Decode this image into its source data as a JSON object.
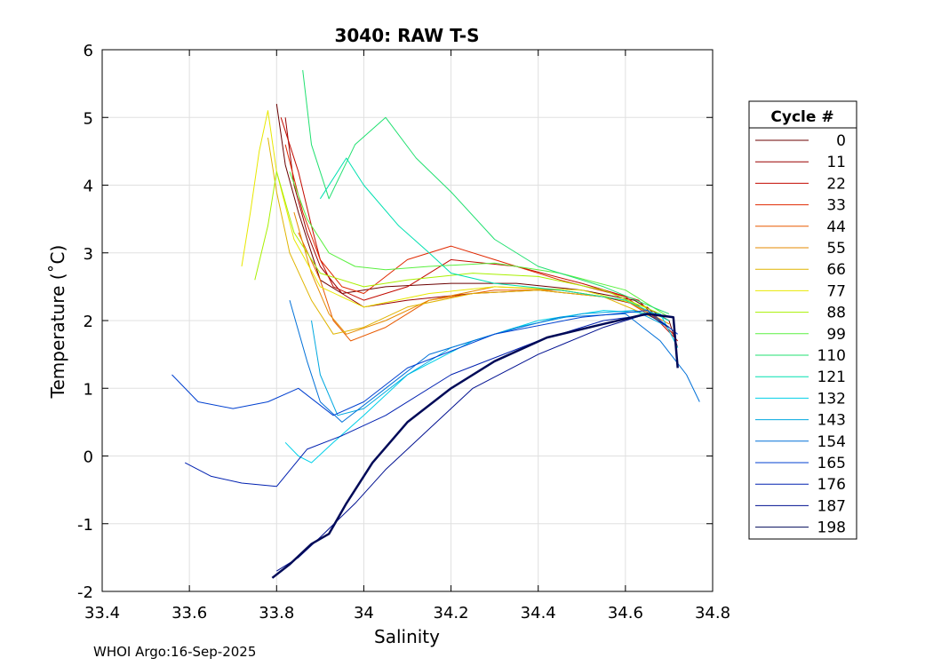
{
  "chart_data": {
    "type": "line",
    "title": "3040: RAW T-S",
    "xlabel": "Salinity",
    "ylabel": "Temperature (˚C)",
    "xlim": [
      33.4,
      34.8
    ],
    "ylim": [
      -2,
      6
    ],
    "xticks": [
      33.4,
      33.6,
      33.8,
      34,
      34.2,
      34.4,
      34.6,
      34.8
    ],
    "xtick_labels": [
      "33.4",
      "33.6",
      "33.8",
      "34",
      "34.2",
      "34.4",
      "34.6",
      "34.8"
    ],
    "yticks": [
      -2,
      -1,
      0,
      1,
      2,
      3,
      4,
      5,
      6
    ],
    "ytick_labels": [
      "-2",
      "-1",
      "0",
      "1",
      "2",
      "3",
      "4",
      "5",
      "6"
    ],
    "grid": true,
    "legend": {
      "title": "Cycle #",
      "placement": "outside-right",
      "entries": [
        {
          "label": "0",
          "color": "#6b0000"
        },
        {
          "label": "11",
          "color": "#9a0000"
        },
        {
          "label": "22",
          "color": "#c20a00"
        },
        {
          "label": "33",
          "color": "#e02800"
        },
        {
          "label": "44",
          "color": "#e85a00"
        },
        {
          "label": "55",
          "color": "#e68a00"
        },
        {
          "label": "66",
          "color": "#e0b400"
        },
        {
          "label": "77",
          "color": "#e8e800"
        },
        {
          "label": "88",
          "color": "#a8f000"
        },
        {
          "label": "99",
          "color": "#5af040"
        },
        {
          "label": "110",
          "color": "#20e070"
        },
        {
          "label": "121",
          "color": "#00e0b0"
        },
        {
          "label": "132",
          "color": "#00d0e8"
        },
        {
          "label": "143",
          "color": "#00a8e0"
        },
        {
          "label": "154",
          "color": "#0070d8"
        },
        {
          "label": "165",
          "color": "#0040d0"
        },
        {
          "label": "176",
          "color": "#0020b0"
        },
        {
          "label": "187",
          "color": "#001090"
        },
        {
          "label": "198",
          "color": "#000a58"
        }
      ]
    },
    "series": [
      {
        "name": "0",
        "color": "#6b0000",
        "x": [
          33.8,
          33.82,
          33.85,
          33.88,
          33.9,
          33.95,
          34.05,
          34.2,
          34.35,
          34.5,
          34.62,
          34.7,
          34.72
        ],
        "y": [
          5.2,
          4.3,
          3.6,
          3.0,
          2.6,
          2.4,
          2.5,
          2.55,
          2.55,
          2.45,
          2.3,
          2.0,
          1.6
        ]
      },
      {
        "name": "11",
        "color": "#9a0000",
        "x": [
          33.82,
          33.84,
          33.87,
          33.9,
          33.95,
          34.0,
          34.1,
          34.25,
          34.4,
          34.55,
          34.65,
          34.71
        ],
        "y": [
          5.0,
          4.0,
          3.3,
          2.8,
          2.4,
          2.2,
          2.3,
          2.4,
          2.45,
          2.35,
          2.2,
          1.8
        ]
      },
      {
        "name": "22",
        "color": "#c20a00",
        "x": [
          33.81,
          33.85,
          33.88,
          33.9,
          33.93,
          34.0,
          34.1,
          34.2,
          34.35,
          34.5,
          34.63,
          34.72
        ],
        "y": [
          5.0,
          4.2,
          3.4,
          2.9,
          2.5,
          2.3,
          2.5,
          2.9,
          2.8,
          2.55,
          2.3,
          1.7
        ]
      },
      {
        "name": "33",
        "color": "#e02800",
        "x": [
          33.82,
          33.86,
          33.9,
          33.95,
          34.0,
          34.1,
          34.2,
          34.3,
          34.45,
          34.6,
          34.7
        ],
        "y": [
          4.6,
          3.6,
          2.9,
          2.5,
          2.4,
          2.9,
          3.1,
          2.9,
          2.6,
          2.35,
          1.9
        ]
      },
      {
        "name": "44",
        "color": "#e85a00",
        "x": [
          33.85,
          33.9,
          33.93,
          33.97,
          34.05,
          34.15,
          34.3,
          34.45,
          34.6,
          34.7
        ],
        "y": [
          3.3,
          2.6,
          2.0,
          1.7,
          1.9,
          2.3,
          2.45,
          2.45,
          2.3,
          1.9
        ]
      },
      {
        "name": "55",
        "color": "#e68a00",
        "x": [
          33.84,
          33.88,
          33.92,
          33.96,
          34.05,
          34.15,
          34.3,
          34.45,
          34.6,
          34.7
        ],
        "y": [
          3.6,
          2.7,
          2.1,
          1.8,
          2.0,
          2.3,
          2.5,
          2.45,
          2.3,
          1.95
        ]
      },
      {
        "name": "66",
        "color": "#e0b400",
        "x": [
          33.78,
          33.8,
          33.83,
          33.88,
          33.93,
          34.0,
          34.1,
          34.25,
          34.4,
          34.55,
          34.68
        ],
        "y": [
          4.7,
          3.9,
          3.0,
          2.3,
          1.8,
          1.9,
          2.2,
          2.4,
          2.45,
          2.35,
          2.0
        ]
      },
      {
        "name": "77",
        "color": "#e8e800",
        "x": [
          33.72,
          33.74,
          33.76,
          33.78,
          33.8,
          33.84,
          33.9,
          34.0,
          34.15,
          34.3,
          34.5,
          34.65
        ],
        "y": [
          2.8,
          3.6,
          4.5,
          5.1,
          4.2,
          3.2,
          2.5,
          2.2,
          2.4,
          2.5,
          2.45,
          2.2
        ]
      },
      {
        "name": "88",
        "color": "#a8f000",
        "x": [
          33.75,
          33.78,
          33.8,
          33.84,
          33.9,
          34.0,
          34.1,
          34.25,
          34.4,
          34.55,
          34.68
        ],
        "y": [
          2.6,
          3.4,
          4.2,
          3.3,
          2.7,
          2.5,
          2.6,
          2.7,
          2.65,
          2.45,
          2.1
        ]
      },
      {
        "name": "99",
        "color": "#5af040",
        "x": [
          33.83,
          33.87,
          33.92,
          33.98,
          34.05,
          34.15,
          34.3,
          34.45,
          34.6,
          34.7
        ],
        "y": [
          4.2,
          3.5,
          3.0,
          2.8,
          2.75,
          2.8,
          2.85,
          2.7,
          2.45,
          2.05
        ]
      },
      {
        "name": "110",
        "color": "#20e070",
        "x": [
          33.86,
          33.88,
          33.92,
          33.98,
          34.05,
          34.12,
          34.2,
          34.3,
          34.4,
          34.55,
          34.7
        ],
        "y": [
          5.7,
          4.6,
          3.8,
          4.6,
          5.0,
          4.4,
          3.9,
          3.2,
          2.8,
          2.5,
          2.1
        ]
      },
      {
        "name": "121",
        "color": "#00e0b0",
        "x": [
          33.9,
          33.96,
          34.0,
          34.08,
          34.15,
          34.2,
          34.3,
          34.45,
          34.6,
          34.7
        ],
        "y": [
          3.8,
          4.4,
          4.0,
          3.4,
          3.0,
          2.7,
          2.55,
          2.45,
          2.3,
          2.0
        ]
      },
      {
        "name": "132",
        "color": "#00d0e8",
        "x": [
          33.82,
          33.85,
          33.88,
          33.93,
          34.0,
          34.1,
          34.25,
          34.4,
          34.55,
          34.68,
          34.72
        ],
        "y": [
          0.2,
          0.0,
          -0.1,
          0.2,
          0.6,
          1.2,
          1.7,
          2.0,
          2.15,
          2.1,
          1.6
        ]
      },
      {
        "name": "143",
        "color": "#00a8e0",
        "x": [
          33.88,
          33.9,
          33.94,
          34.0,
          34.1,
          34.2,
          34.35,
          34.5,
          34.62,
          34.7
        ],
        "y": [
          2.0,
          1.2,
          0.6,
          0.7,
          1.2,
          1.6,
          1.9,
          2.1,
          2.15,
          1.9
        ]
      },
      {
        "name": "154",
        "color": "#0070d8",
        "x": [
          33.83,
          33.87,
          33.9,
          33.95,
          34.05,
          34.15,
          34.3,
          34.45,
          34.6,
          34.68,
          34.74,
          34.77
        ],
        "y": [
          2.3,
          1.4,
          0.8,
          0.5,
          1.0,
          1.5,
          1.8,
          2.05,
          2.1,
          1.7,
          1.2,
          0.8
        ]
      },
      {
        "name": "165",
        "color": "#0040d0",
        "x": [
          33.56,
          33.62,
          33.7,
          33.78,
          33.85,
          33.93,
          34.0,
          34.1,
          34.3,
          34.5,
          34.65,
          34.72
        ],
        "y": [
          1.2,
          0.8,
          0.7,
          0.8,
          1.0,
          0.6,
          0.8,
          1.3,
          1.8,
          2.05,
          2.15,
          1.8
        ]
      },
      {
        "name": "176",
        "color": "#0020b0",
        "x": [
          33.59,
          33.65,
          33.72,
          33.8,
          33.87,
          33.95,
          34.05,
          34.2,
          34.4,
          34.55,
          34.67
        ],
        "y": [
          -0.1,
          -0.3,
          -0.4,
          -0.45,
          0.1,
          0.3,
          0.6,
          1.2,
          1.7,
          2.0,
          2.1
        ]
      },
      {
        "name": "187",
        "color": "#001090",
        "x": [
          33.8,
          33.85,
          33.9,
          33.98,
          34.05,
          34.15,
          34.25,
          34.4,
          34.55,
          34.65,
          34.7
        ],
        "y": [
          -1.7,
          -1.5,
          -1.2,
          -0.7,
          -0.2,
          0.4,
          1.0,
          1.5,
          1.9,
          2.1,
          1.9
        ]
      },
      {
        "name": "198",
        "color": "#000a58",
        "x": [
          33.79,
          33.83,
          33.88,
          33.92,
          33.96,
          34.02,
          34.1,
          34.2,
          34.3,
          34.42,
          34.55,
          34.65,
          34.71,
          34.72
        ],
        "y": [
          -1.8,
          -1.6,
          -1.3,
          -1.15,
          -0.7,
          -0.1,
          0.5,
          1.0,
          1.4,
          1.75,
          1.95,
          2.1,
          2.05,
          1.3
        ]
      }
    ]
  },
  "footer": {
    "text": "WHOI Argo:16-Sep-2025"
  }
}
